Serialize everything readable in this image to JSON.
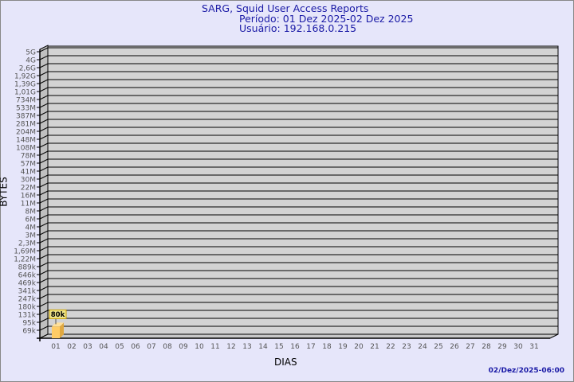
{
  "title": {
    "line1": "SARG, Squid User Access Reports",
    "line2": "Período: 01 Dez 2025-02 Dez 2025",
    "line3": "Usuário: 192.168.0.215"
  },
  "footer": "02/Dez/2025-06:00",
  "colors": {
    "background": "#e6e6fa",
    "plot": "#d3d3d3",
    "bar": "#ffcc66",
    "title": "#1a1aa6"
  },
  "chart_data": {
    "type": "bar",
    "xlabel": "DIAS",
    "ylabel": "BYTES",
    "y_scale": "log",
    "grid": true,
    "y_ticks": [
      "5G",
      "4G",
      "2,6G",
      "1,92G",
      "1,39G",
      "1,01G",
      "734M",
      "533M",
      "387M",
      "281M",
      "204M",
      "148M",
      "108M",
      "78M",
      "57M",
      "41M",
      "30M",
      "22M",
      "16M",
      "11M",
      "8M",
      "6M",
      "4M",
      "3M",
      "2,3M",
      "1,69M",
      "1,22M",
      "889k",
      "646k",
      "469k",
      "341k",
      "247k",
      "180k",
      "131k",
      "95k",
      "69k"
    ],
    "categories": [
      "01",
      "02",
      "03",
      "04",
      "05",
      "06",
      "07",
      "08",
      "09",
      "10",
      "11",
      "12",
      "13",
      "14",
      "15",
      "16",
      "17",
      "18",
      "19",
      "20",
      "21",
      "22",
      "23",
      "24",
      "25",
      "26",
      "27",
      "28",
      "29",
      "30",
      "31"
    ],
    "values": [
      80000,
      null,
      null,
      null,
      null,
      null,
      null,
      null,
      null,
      null,
      null,
      null,
      null,
      null,
      null,
      null,
      null,
      null,
      null,
      null,
      null,
      null,
      null,
      null,
      null,
      null,
      null,
      null,
      null,
      null,
      null
    ],
    "data_labels": [
      "80k"
    ]
  }
}
